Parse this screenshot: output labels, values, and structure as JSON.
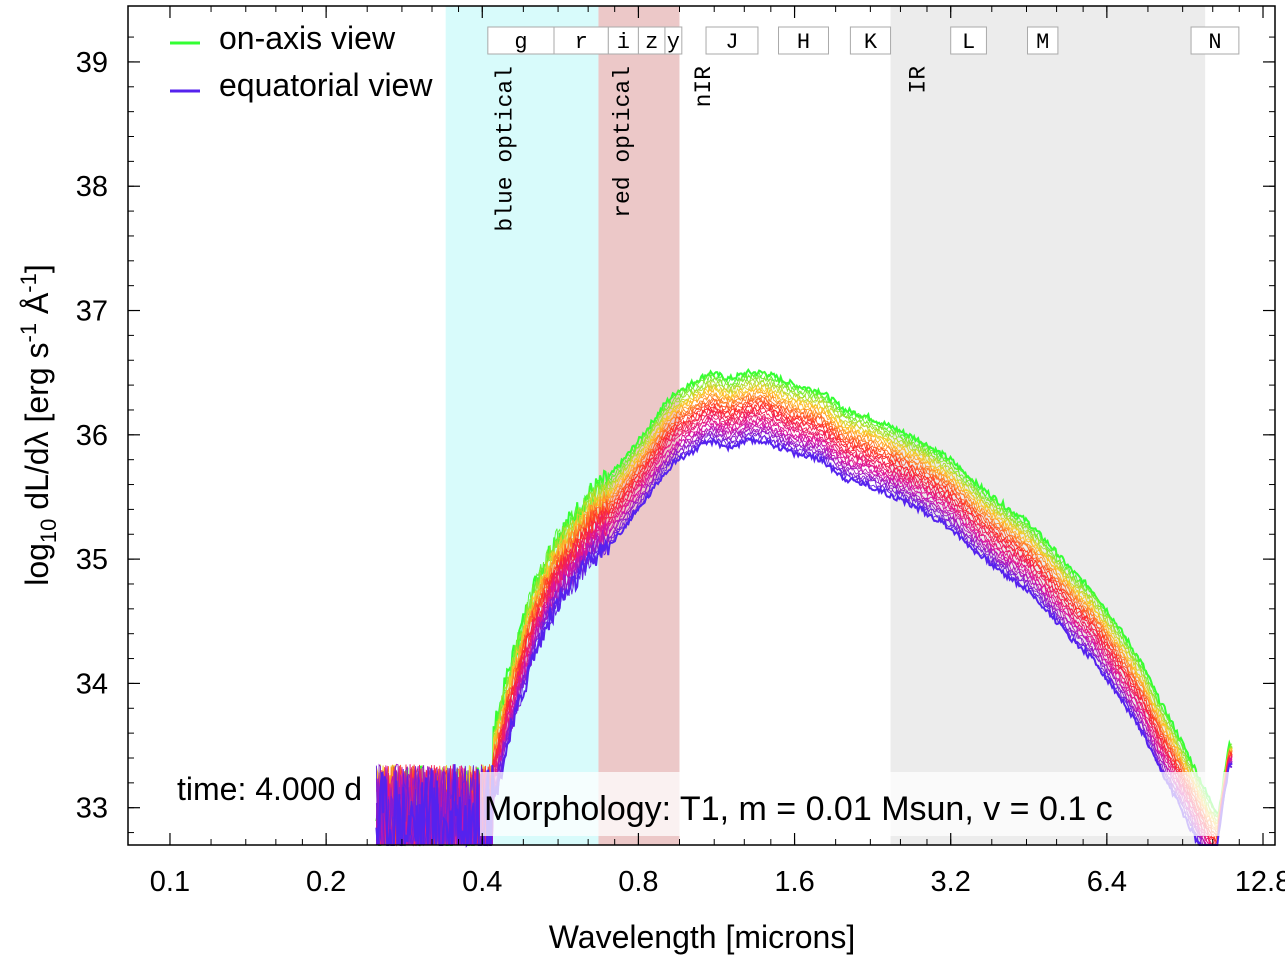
{
  "chart_data": {
    "type": "line",
    "xlabel": "Wavelength [microns]",
    "ylabel": "log10 dL/dλ [erg s-1 Å-1]",
    "x_scale": "log2",
    "xlim": [
      0.083,
      13.5
    ],
    "ylim": [
      32.7,
      39.45
    ],
    "x_ticks": [
      0.1,
      0.2,
      0.4,
      0.8,
      1.6,
      3.2,
      6.4,
      12.8
    ],
    "x_tick_labels": [
      "0.1",
      "0.2",
      "0.4",
      "0.8",
      "1.6",
      "3.2",
      "6.4",
      "12.8"
    ],
    "y_ticks": [
      33,
      34,
      35,
      36,
      37,
      38,
      39
    ],
    "y_tick_labels": [
      "33",
      "34",
      "35",
      "36",
      "37",
      "38",
      "39"
    ],
    "bands": [
      {
        "label": "blue optical",
        "x0": 0.34,
        "x1": 0.67,
        "color": "#d8fbfb"
      },
      {
        "label": "red optical",
        "x0": 0.67,
        "x1": 0.96,
        "color": "#ecc8c8"
      },
      {
        "label": "nIR",
        "x0": 0.96,
        "x1": 2.45,
        "color": "#ffffff"
      },
      {
        "label": "IR",
        "x0": 2.45,
        "x1": 9.9,
        "color": "#ececec"
      }
    ],
    "band_label_positions": [
      0.44,
      0.74,
      1.06,
      2.75
    ],
    "filters": [
      {
        "label": "g",
        "x0": 0.41,
        "x1": 0.55
      },
      {
        "label": "r",
        "x0": 0.55,
        "x1": 0.7
      },
      {
        "label": "i",
        "x0": 0.7,
        "x1": 0.8
      },
      {
        "label": "z",
        "x0": 0.8,
        "x1": 0.9
      },
      {
        "label": "y",
        "x0": 0.9,
        "x1": 0.97
      },
      {
        "label": "J",
        "x0": 1.08,
        "x1": 1.36
      },
      {
        "label": "H",
        "x0": 1.49,
        "x1": 1.86
      },
      {
        "label": "K",
        "x0": 2.05,
        "x1": 2.45
      },
      {
        "label": "L",
        "x0": 3.2,
        "x1": 3.75
      },
      {
        "label": "M",
        "x0": 4.5,
        "x1": 5.15
      },
      {
        "label": "N",
        "x0": 9.3,
        "x1": 11.5
      }
    ],
    "series_count": 30,
    "series_color_from": "#33ff33",
    "series_color_to": "#5522ee",
    "on_axis_spectrum": {
      "x": [
        0.42,
        0.45,
        0.5,
        0.55,
        0.6,
        0.65,
        0.7,
        0.75,
        0.8,
        0.85,
        0.9,
        0.95,
        1.0,
        1.1,
        1.2,
        1.3,
        1.4,
        1.5,
        1.6,
        1.8,
        2.0,
        2.2,
        2.5,
        2.8,
        3.2,
        3.6,
        4.0,
        4.5,
        5.0,
        5.5,
        6.0,
        6.5,
        7.0,
        7.5,
        8.0,
        8.5,
        9.0,
        9.5,
        10.0,
        10.5,
        11.0
      ],
      "y": [
        33.6,
        34.1,
        34.75,
        35.15,
        35.35,
        35.55,
        35.65,
        35.8,
        35.95,
        36.1,
        36.25,
        36.35,
        36.4,
        36.5,
        36.45,
        36.5,
        36.5,
        36.45,
        36.4,
        36.35,
        36.2,
        36.15,
        36.05,
        35.95,
        35.8,
        35.6,
        35.45,
        35.3,
        35.1,
        34.9,
        34.75,
        34.55,
        34.35,
        34.15,
        33.9,
        33.7,
        33.5,
        33.3,
        33.1,
        32.95,
        33.5
      ]
    },
    "equatorial_offset": 0.55,
    "legend": [
      {
        "label": "on-axis view",
        "color": "#33ff33"
      },
      {
        "label": "equatorial view",
        "color": "#5522ee"
      }
    ],
    "legend_position": "top-left",
    "annotations": {
      "time": "time: 4.000 d",
      "morphology": "Morphology: T1, m = 0.01 Msun, v = 0.1 c"
    }
  }
}
